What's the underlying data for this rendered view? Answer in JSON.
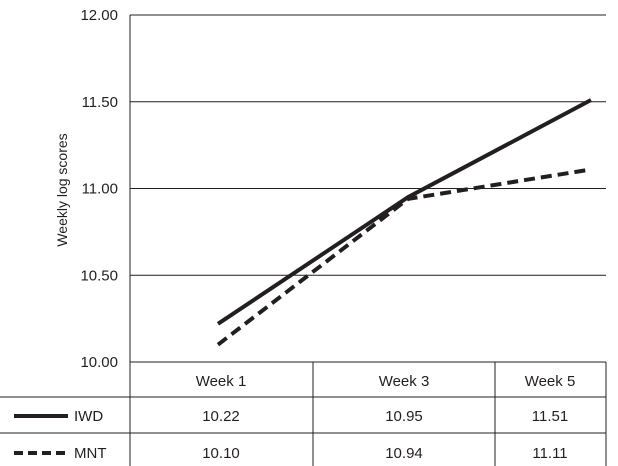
{
  "chart_data": {
    "type": "line",
    "ylabel": "Weekly log scores",
    "ylim": [
      10.0,
      12.0
    ],
    "yticks": [
      "10.00",
      "10.50",
      "11.00",
      "11.50",
      "12.00"
    ],
    "grid": true,
    "categories": [
      "Week 1",
      "Week 3",
      "Week 5"
    ],
    "series": [
      {
        "name": "IWD",
        "values": [
          10.22,
          10.95,
          11.51
        ],
        "labels": [
          "10.22",
          "10.95",
          "11.51"
        ],
        "style": "solid",
        "color": "#231f20"
      },
      {
        "name": "MNT",
        "values": [
          10.1,
          10.94,
          11.11
        ],
        "labels": [
          "10.10",
          "10.94",
          "11.11"
        ],
        "style": "dashed",
        "color": "#231f20"
      }
    ],
    "legend": "data-table-left"
  }
}
